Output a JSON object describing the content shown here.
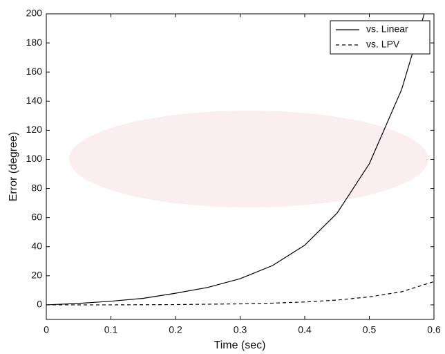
{
  "chart_data": {
    "type": "line",
    "xlabel": "Time (sec)",
    "ylabel": "Error (degree)",
    "xlim": [
      0,
      0.6
    ],
    "xticks": [
      0,
      0.1,
      0.2,
      0.3,
      0.4,
      0.5,
      0.6
    ],
    "ylim": [
      -10,
      200
    ],
    "yticks": [
      0,
      20,
      40,
      60,
      80,
      100,
      120,
      140,
      160,
      180,
      200
    ],
    "grid": false,
    "legend": "upper-right",
    "series": [
      {
        "name": "vs. Linear",
        "color": "#000000",
        "linestyle": "solid",
        "x": [
          0,
          0.05,
          0.1,
          0.15,
          0.2,
          0.25,
          0.3,
          0.35,
          0.4,
          0.45,
          0.5,
          0.55,
          0.585
        ],
        "values": [
          0,
          1,
          2.5,
          4.5,
          8,
          12,
          18,
          27,
          41,
          63,
          97,
          148,
          200
        ]
      },
      {
        "name": "vs. LPV",
        "color": "#000000",
        "linestyle": "dashed",
        "x": [
          0,
          0.1,
          0.2,
          0.3,
          0.35,
          0.4,
          0.45,
          0.5,
          0.55,
          0.6
        ],
        "values": [
          0,
          0,
          0.2,
          0.7,
          1.2,
          2,
          3.3,
          5.5,
          9,
          16
        ]
      }
    ]
  }
}
